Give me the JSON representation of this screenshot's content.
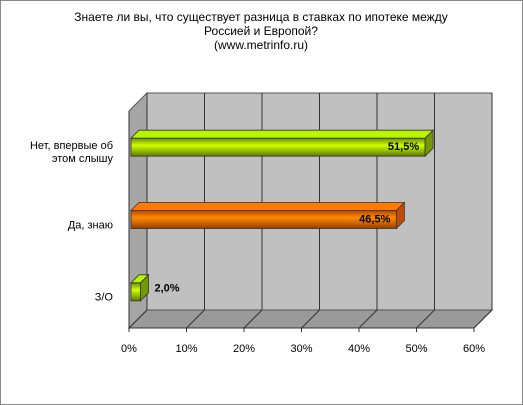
{
  "chart_data": {
    "type": "bar3d",
    "title": "Знаете ли вы, что существует разница в ставках по ипотеке между Россией и Европой?",
    "subtitle": "(www.metrinfo.ru)",
    "categories": [
      "Нет, впервые об этом слышу",
      "Да, знаю",
      "З/О"
    ],
    "values": [
      51.5,
      46.5,
      2.0
    ],
    "value_labels": [
      "51,5%",
      "46,5%",
      "2,0%"
    ],
    "colors": [
      "#99cc00",
      "#ff6600",
      "#99cc00"
    ],
    "xlim": [
      0,
      60
    ],
    "xticks": [
      {
        "value": 0,
        "label": "0%"
      },
      {
        "value": 10,
        "label": "10%"
      },
      {
        "value": 20,
        "label": "20%"
      },
      {
        "value": 30,
        "label": "30%"
      },
      {
        "value": 40,
        "label": "40%"
      },
      {
        "value": 50,
        "label": "50%"
      },
      {
        "value": 60,
        "label": "60%"
      }
    ],
    "grid": true
  }
}
